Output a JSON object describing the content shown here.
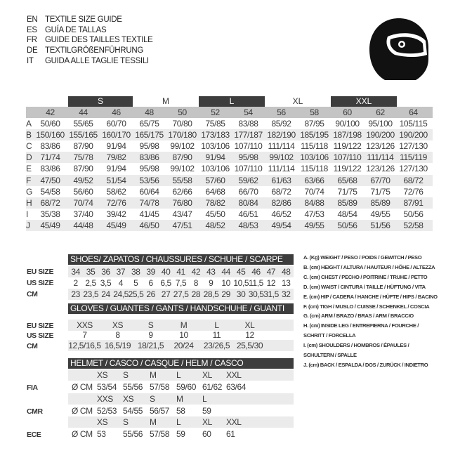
{
  "header": {
    "lines": [
      {
        "code": "EN",
        "text": "TEXTILE SIZE GUIDE"
      },
      {
        "code": "ES",
        "text": "GUÍA DE TALLAS"
      },
      {
        "code": "FR",
        "text": "GUIDE DES TAILLES TEXTILE"
      },
      {
        "code": "DE",
        "text": "TEXTILGRÖßENFÜHRUNG"
      },
      {
        "code": "IT",
        "text": "GUIDA ALLE TAGLIE TESSILI"
      }
    ],
    "icon": "helmet-icon"
  },
  "textile": {
    "size_bands": [
      {
        "label": "S",
        "dark": true
      },
      {
        "label": "M",
        "dark": false
      },
      {
        "label": "L",
        "dark": true
      },
      {
        "label": "XL",
        "dark": false
      },
      {
        "label": "XXL",
        "dark": true
      }
    ],
    "columns": [
      "42",
      "44",
      "46",
      "48",
      "50",
      "52",
      "54",
      "56",
      "58",
      "60",
      "62",
      "64"
    ],
    "rows": [
      {
        "letter": "A",
        "values": [
          "50/60",
          "55/65",
          "60/70",
          "65/75",
          "70/80",
          "75/85",
          "83/88",
          "85/92",
          "87/95",
          "90/100",
          "95/100",
          "105/115"
        ]
      },
      {
        "letter": "B",
        "values": [
          "150/160",
          "155/165",
          "160/170",
          "165/175",
          "170/180",
          "173/183",
          "177/187",
          "182/190",
          "185/195",
          "187/198",
          "190/200",
          "190/200"
        ]
      },
      {
        "letter": "C",
        "values": [
          "83/86",
          "87/90",
          "91/94",
          "95/98",
          "99/102",
          "103/106",
          "107/110",
          "111/114",
          "115/118",
          "119/122",
          "123/126",
          "127/130"
        ]
      },
      {
        "letter": "D",
        "values": [
          "71/74",
          "75/78",
          "79/82",
          "83/86",
          "87/90",
          "91/94",
          "95/98",
          "99/102",
          "103/106",
          "107/110",
          "111/114",
          "115/119"
        ]
      },
      {
        "letter": "E",
        "values": [
          "83/86",
          "87/90",
          "91/94",
          "95/98",
          "99/102",
          "103/106",
          "107/110",
          "111/114",
          "115/118",
          "119/122",
          "123/126",
          "127/130"
        ]
      },
      {
        "letter": "F",
        "values": [
          "47/50",
          "49/52",
          "51/54",
          "53/56",
          "55/58",
          "57/60",
          "59/62",
          "61/63",
          "63/66",
          "65/68",
          "67/70",
          "68/72"
        ]
      },
      {
        "letter": "G",
        "values": [
          "54/58",
          "56/60",
          "58/62",
          "60/64",
          "62/66",
          "64/68",
          "66/70",
          "68/72",
          "70/74",
          "71/75",
          "71/75",
          "72/76"
        ]
      },
      {
        "letter": "H",
        "values": [
          "68/72",
          "70/74",
          "72/76",
          "74/78",
          "76/80",
          "78/82",
          "80/84",
          "82/86",
          "84/88",
          "85/89",
          "85/89",
          "87/91"
        ]
      },
      {
        "letter": "I",
        "values": [
          "35/38",
          "37/40",
          "39/42",
          "41/45",
          "43/47",
          "45/50",
          "46/51",
          "46/52",
          "47/53",
          "48/54",
          "49/55",
          "50/56"
        ]
      },
      {
        "letter": "J",
        "values": [
          "45/49",
          "44/48",
          "45/49",
          "46/50",
          "47/51",
          "48/52",
          "48/53",
          "49/54",
          "49/55",
          "50/56",
          "51/56",
          "52/58"
        ]
      }
    ]
  },
  "shoes": {
    "title": "SHOES/ ZAPATOS / CHAUSSURES / SCHUHE / SCARPE",
    "rows": [
      {
        "label": "EU SIZE",
        "values": [
          "34",
          "35",
          "36",
          "37",
          "38",
          "39",
          "40",
          "41",
          "42",
          "43",
          "44",
          "45",
          "46",
          "47",
          "48"
        ]
      },
      {
        "label": "US SIZE",
        "values": [
          "2",
          "2,5",
          "3,5",
          "4",
          "5",
          "6",
          "6,5",
          "7,5",
          "8",
          "9",
          "10",
          "10,5",
          "11,5",
          "12",
          "13"
        ]
      },
      {
        "label": "CM",
        "values": [
          "23",
          "23,5",
          "24",
          "24,5",
          "25,5",
          "26",
          "27",
          "27,5",
          "28",
          "28,5",
          "29",
          "30",
          "30,5",
          "31,5",
          "32"
        ]
      }
    ]
  },
  "gloves": {
    "title": "GLOVES / GUANTES / GANTS / HANDSCHUHE / GUANTI",
    "rows": [
      {
        "label": "EU SIZE",
        "values": [
          "XXS",
          "XS",
          "S",
          "M",
          "L",
          "XL"
        ]
      },
      {
        "label": "US SIZE",
        "values": [
          "7",
          "8",
          "9",
          "10",
          "11",
          "12"
        ]
      },
      {
        "label": "CM",
        "values": [
          "12,5/16,5",
          "16,5/19",
          "18/21,5",
          "20/24",
          "23/26,5",
          "25,5/30"
        ]
      }
    ]
  },
  "helmet": {
    "title": "HELMET / CASCO / CASQUE / HELM / CASCO",
    "unit": "Ø CM",
    "standards": [
      {
        "label": "FIA",
        "sizes": [
          "XS",
          "S",
          "M",
          "L",
          "XL",
          "XXL"
        ],
        "values": [
          "53/54",
          "55/56",
          "57/58",
          "59/60",
          "61/62",
          "63/64"
        ]
      },
      {
        "label": "CMR",
        "sizes": [
          "XXS",
          "XS",
          "S",
          "M",
          "L"
        ],
        "values": [
          "52/53",
          "54/55",
          "56/57",
          "58",
          "59"
        ]
      },
      {
        "label": "ECE",
        "sizes": [
          "XS",
          "S",
          "M",
          "L",
          "XL",
          "XXL"
        ],
        "values": [
          "53",
          "55/56",
          "57/58",
          "59",
          "60",
          "61"
        ]
      }
    ]
  },
  "legend": [
    "A. (Kg) WEIGHT / PESO / POIDS / GEWITCH / PESO",
    "B. (cm) HEIGHT / ALTURA / HAUTEUR / HÖHE / ALTEZZA",
    "C. (cm) CHEST / PECHO / POITRINE / TRUHE / PETTO",
    "D. (cm) WAIST / CINTURA / TAILLE / HÜFTUNG / VITA",
    "E. (cm) HIP / CADERA / HANCHE / HÜFTE / HIPS /  BACINO",
    "F. (cm) TIGH / MUSLO / CUISSE / SCHENKEL / COSCIA",
    "G. (cm) ARM  / BRAZO / BRAS / ARM / BRACCIO",
    "H. (cm) INSIDE LEG / ENTREPIERNA / FOURCHE /",
    "SCHRITT / FORCELLA",
    "I. (cm) SHOULDERS / HOMBROS / ÉPAULES /",
    "SCHULTERN / SPALLE",
    "J. (cm) BACK / ESPALDA / DOS / ZURÜCK / INDIETRO"
  ],
  "colors": {
    "dark": "#3d3d3d",
    "stripe": "#ebebeb",
    "header_row": "#c4c4c4"
  }
}
